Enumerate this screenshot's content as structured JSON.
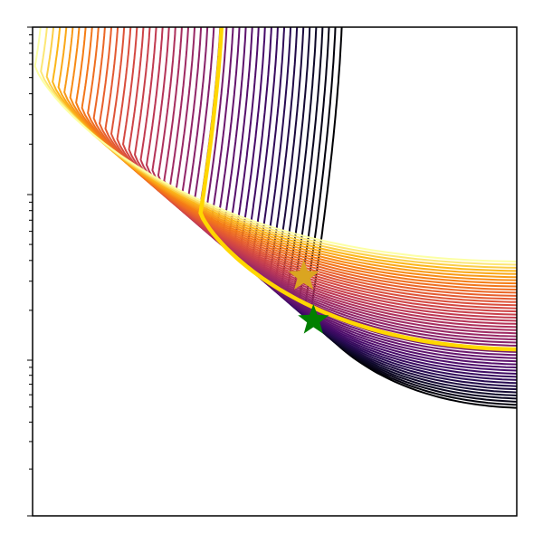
{
  "chart_data": {
    "type": "contour",
    "title": "",
    "xlabel": "",
    "ylabel": "",
    "xlim": [
      0,
      1
    ],
    "ylim": [
      0,
      1
    ],
    "y_scale": "log",
    "x_tick_labels": [],
    "y_tick_labels": [],
    "grid": false,
    "legend": "none",
    "colormap": "inferno",
    "contour_levels": {
      "count": 48,
      "levels_shown": [
        {
          "index": 0,
          "color": "#000004"
        },
        {
          "index": 4,
          "color": "#0d0829"
        },
        {
          "index": 8,
          "color": "#280b53"
        },
        {
          "index": 12,
          "color": "#470b6a"
        },
        {
          "index": 16,
          "color": "#65156e"
        },
        {
          "index": 20,
          "color": "#82206c"
        },
        {
          "index": 24,
          "color": "#9f2a63"
        },
        {
          "index": 28,
          "color": "#bc3754"
        },
        {
          "index": 32,
          "color": "#d44842"
        },
        {
          "index": 36,
          "color": "#e8602d"
        },
        {
          "index": 40,
          "color": "#f57d15"
        },
        {
          "index": 44,
          "color": "#fbb61a"
        },
        {
          "index": 47,
          "color": "#fcffa4"
        }
      ]
    },
    "highlighted_level": {
      "color": "#ffd700",
      "width": "thick"
    },
    "markers": [
      {
        "name": "",
        "shape": "star",
        "color": "#daa520",
        "x": 0.56,
        "y": 0.49
      },
      {
        "name": "",
        "shape": "star",
        "color": "#008000",
        "x": 0.58,
        "y": 0.4
      }
    ]
  }
}
